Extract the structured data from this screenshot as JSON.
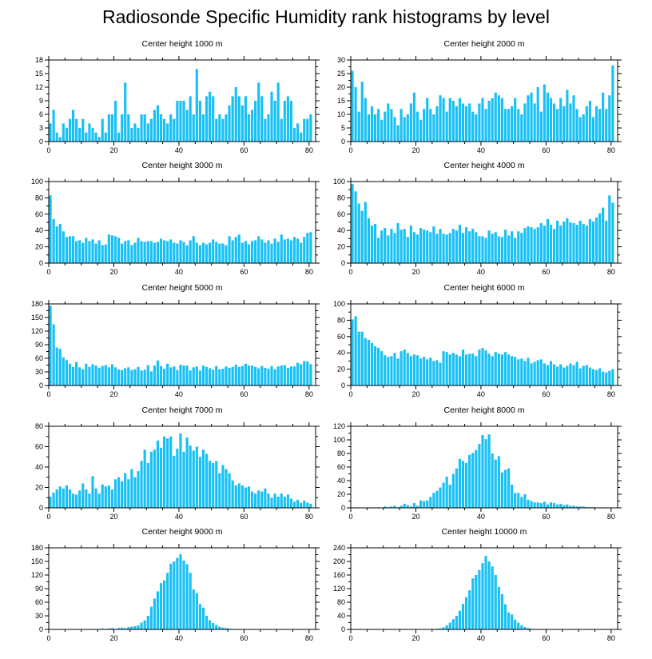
{
  "title": "Radiosonde Specific Humidity rank histograms by level",
  "chart_data": [
    {
      "type": "bar",
      "title": "Center height 1000 m",
      "xlim": [
        0,
        82
      ],
      "ylim": [
        0,
        18
      ],
      "xticks": [
        0,
        20,
        40,
        60,
        80
      ],
      "yticks": [
        0,
        3,
        6,
        9,
        12,
        15,
        18
      ],
      "values": [
        4,
        7,
        2,
        1,
        4,
        3,
        5,
        7,
        5,
        3,
        5,
        2,
        4,
        3,
        2,
        1,
        5,
        2,
        6,
        6,
        9,
        2,
        6,
        13,
        6,
        3,
        4,
        3,
        6,
        6,
        4,
        5,
        7,
        8,
        6,
        5,
        4,
        6,
        5,
        9,
        9,
        9,
        7,
        10,
        6,
        16,
        9,
        6,
        10,
        11,
        10,
        5,
        6,
        5,
        6,
        8,
        10,
        12,
        10,
        8,
        10,
        6,
        7,
        9,
        13,
        10,
        5,
        6,
        11,
        9,
        13,
        5,
        9,
        10,
        9,
        3,
        4,
        2,
        5,
        5,
        6
      ]
    },
    {
      "type": "bar",
      "title": "Center height 2000 m",
      "xlim": [
        0,
        82
      ],
      "ylim": [
        0,
        30
      ],
      "xticks": [
        0,
        20,
        40,
        60,
        80
      ],
      "yticks": [
        0,
        5,
        10,
        15,
        20,
        25,
        30
      ],
      "values": [
        26,
        20,
        11,
        22,
        16,
        10,
        13,
        10,
        12,
        8,
        11,
        14,
        12,
        9,
        6,
        12,
        9,
        10,
        14,
        18,
        11,
        8,
        12,
        16,
        12,
        10,
        13,
        17,
        16,
        11,
        16,
        15,
        13,
        16,
        14,
        13,
        14,
        11,
        10,
        14,
        16,
        12,
        15,
        16,
        18,
        17,
        16,
        12,
        12,
        13,
        16,
        12,
        10,
        14,
        17,
        18,
        14,
        20,
        11,
        21,
        18,
        16,
        14,
        12,
        16,
        13,
        19,
        14,
        17,
        12,
        9,
        10,
        13,
        15,
        9,
        13,
        12,
        18,
        12,
        17,
        28
      ]
    },
    {
      "type": "bar",
      "title": "Center height 3000 m",
      "xlim": [
        0,
        82
      ],
      "ylim": [
        0,
        100
      ],
      "xticks": [
        0,
        20,
        40,
        60,
        80
      ],
      "yticks": [
        0,
        20,
        40,
        60,
        80,
        100
      ],
      "values": [
        83,
        54,
        45,
        48,
        39,
        32,
        33,
        33,
        27,
        28,
        25,
        31,
        27,
        29,
        24,
        28,
        22,
        23,
        35,
        34,
        33,
        31,
        24,
        27,
        28,
        22,
        25,
        31,
        27,
        26,
        27,
        27,
        25,
        26,
        30,
        28,
        27,
        29,
        25,
        24,
        28,
        26,
        22,
        28,
        33,
        25,
        22,
        25,
        23,
        25,
        29,
        26,
        24,
        24,
        22,
        33,
        28,
        32,
        35,
        25,
        27,
        23,
        27,
        28,
        33,
        29,
        25,
        28,
        24,
        30,
        26,
        35,
        29,
        30,
        28,
        32,
        30,
        25,
        32,
        37,
        38
      ]
    },
    {
      "type": "bar",
      "title": "Center height 4000 m",
      "xlim": [
        0,
        82
      ],
      "ylim": [
        0,
        100
      ],
      "xticks": [
        0,
        20,
        40,
        60,
        80
      ],
      "yticks": [
        0,
        20,
        40,
        60,
        80,
        100
      ],
      "values": [
        97,
        88,
        73,
        64,
        75,
        55,
        46,
        48,
        31,
        40,
        43,
        34,
        42,
        37,
        49,
        41,
        42,
        32,
        46,
        38,
        35,
        43,
        41,
        40,
        38,
        45,
        36,
        42,
        36,
        35,
        37,
        42,
        40,
        47,
        37,
        44,
        39,
        42,
        38,
        33,
        33,
        31,
        40,
        36,
        38,
        33,
        32,
        41,
        34,
        39,
        31,
        39,
        37,
        43,
        45,
        44,
        42,
        44,
        49,
        46,
        54,
        47,
        42,
        52,
        46,
        51,
        55,
        50,
        49,
        47,
        52,
        48,
        46,
        54,
        51,
        56,
        61,
        68,
        52,
        83,
        74
      ]
    },
    {
      "type": "bar",
      "title": "Center height 5000 m",
      "xlim": [
        0,
        82
      ],
      "ylim": [
        0,
        180
      ],
      "xticks": [
        0,
        20,
        40,
        60,
        80
      ],
      "yticks": [
        0,
        30,
        60,
        90,
        120,
        150,
        180
      ],
      "values": [
        176,
        135,
        84,
        81,
        62,
        56,
        48,
        41,
        52,
        40,
        36,
        48,
        41,
        47,
        44,
        39,
        43,
        45,
        40,
        47,
        40,
        35,
        34,
        38,
        40,
        34,
        36,
        41,
        33,
        35,
        45,
        31,
        44,
        55,
        43,
        37,
        48,
        40,
        42,
        34,
        46,
        44,
        44,
        33,
        40,
        42,
        33,
        44,
        41,
        38,
        35,
        43,
        36,
        37,
        42,
        39,
        41,
        46,
        41,
        43,
        48,
        44,
        44,
        41,
        38,
        43,
        39,
        37,
        43,
        36,
        42,
        44,
        45,
        39,
        42,
        42,
        50,
        47,
        54,
        53,
        47
      ]
    },
    {
      "type": "bar",
      "title": "Center height 6000 m",
      "xlim": [
        0,
        82
      ],
      "ylim": [
        0,
        100
      ],
      "xticks": [
        0,
        20,
        40,
        60,
        80
      ],
      "yticks": [
        0,
        20,
        40,
        60,
        80,
        100
      ],
      "values": [
        81,
        85,
        66,
        66,
        58,
        56,
        52,
        48,
        46,
        42,
        37,
        35,
        36,
        40,
        33,
        42,
        44,
        40,
        36,
        38,
        37,
        33,
        35,
        32,
        34,
        30,
        31,
        28,
        42,
        41,
        38,
        40,
        38,
        36,
        44,
        38,
        39,
        39,
        36,
        44,
        46,
        43,
        39,
        36,
        41,
        39,
        38,
        41,
        38,
        36,
        35,
        32,
        33,
        30,
        34,
        27,
        29,
        31,
        32,
        27,
        25,
        30,
        26,
        23,
        26,
        22,
        24,
        27,
        25,
        29,
        21,
        24,
        25,
        22,
        20,
        19,
        21,
        17,
        16,
        18,
        20
      ]
    },
    {
      "type": "bar",
      "title": "Center height 7000 m",
      "xlim": [
        0,
        82
      ],
      "ylim": [
        0,
        80
      ],
      "xticks": [
        0,
        20,
        40,
        60,
        80
      ],
      "yticks": [
        0,
        20,
        40,
        60,
        80
      ],
      "values": [
        11,
        15,
        18,
        21,
        19,
        22,
        18,
        14,
        13,
        17,
        24,
        18,
        14,
        31,
        19,
        14,
        23,
        21,
        22,
        18,
        28,
        30,
        26,
        34,
        28,
        38,
        30,
        36,
        46,
        57,
        44,
        55,
        57,
        66,
        59,
        70,
        68,
        70,
        51,
        58,
        73,
        55,
        69,
        61,
        56,
        60,
        50,
        57,
        53,
        46,
        44,
        46,
        34,
        42,
        38,
        34,
        27,
        22,
        24,
        22,
        20,
        21,
        16,
        14,
        17,
        16,
        19,
        14,
        10,
        14,
        11,
        14,
        11,
        13,
        9,
        6,
        8,
        5,
        7,
        5,
        4
      ]
    },
    {
      "type": "bar",
      "title": "Center height 8000 m",
      "xlim": [
        0,
        82
      ],
      "ylim": [
        0,
        120
      ],
      "xticks": [
        0,
        20,
        40,
        60,
        80
      ],
      "yticks": [
        0,
        20,
        40,
        60,
        80,
        100,
        120
      ],
      "values": [
        0,
        0,
        0,
        0,
        0,
        0,
        0,
        0,
        1,
        0,
        2,
        1,
        2,
        3,
        1,
        3,
        6,
        4,
        2,
        7,
        3,
        11,
        10,
        11,
        16,
        22,
        25,
        30,
        37,
        46,
        34,
        50,
        58,
        72,
        69,
        66,
        78,
        81,
        85,
        94,
        107,
        101,
        108,
        80,
        71,
        76,
        52,
        56,
        58,
        34,
        22,
        22,
        16,
        20,
        12,
        10,
        8,
        8,
        7,
        9,
        5,
        8,
        7,
        5,
        6,
        4,
        5,
        3,
        3,
        2,
        2,
        2,
        1,
        1,
        1,
        0,
        0,
        0,
        0,
        0,
        0
      ]
    },
    {
      "type": "bar",
      "title": "Center height 9000 m",
      "xlim": [
        0,
        82
      ],
      "ylim": [
        0,
        180
      ],
      "xticks": [
        0,
        20,
        40,
        60,
        80
      ],
      "yticks": [
        0,
        30,
        60,
        90,
        120,
        150,
        180
      ],
      "values": [
        0,
        0,
        0,
        0,
        0,
        0,
        0,
        0,
        0,
        0,
        0,
        0,
        0,
        0,
        0,
        0,
        2,
        1,
        2,
        3,
        1,
        3,
        4,
        3,
        5,
        6,
        7,
        9,
        15,
        20,
        30,
        50,
        68,
        84,
        102,
        108,
        125,
        145,
        150,
        158,
        166,
        152,
        144,
        125,
        88,
        80,
        56,
        48,
        30,
        20,
        14,
        10,
        6,
        4,
        3,
        2,
        1,
        1,
        0,
        0,
        0,
        0,
        0,
        0,
        0,
        0,
        0,
        0,
        0,
        0,
        0,
        0,
        0,
        0,
        0,
        0,
        0,
        0,
        0,
        0,
        0
      ]
    },
    {
      "type": "bar",
      "title": "Center height 10000 m",
      "xlim": [
        0,
        82
      ],
      "ylim": [
        0,
        240
      ],
      "xticks": [
        0,
        20,
        40,
        60,
        80
      ],
      "yticks": [
        0,
        40,
        80,
        120,
        160,
        200,
        240
      ],
      "values": [
        0,
        0,
        0,
        0,
        0,
        0,
        0,
        0,
        0,
        0,
        0,
        0,
        0,
        0,
        0,
        0,
        0,
        0,
        0,
        0,
        0,
        0,
        0,
        0,
        0,
        1,
        2,
        3,
        6,
        12,
        20,
        30,
        40,
        55,
        75,
        95,
        115,
        150,
        160,
        175,
        195,
        216,
        200,
        185,
        160,
        125,
        104,
        74,
        50,
        44,
        29,
        20,
        12,
        7,
        4,
        2,
        1,
        0,
        0,
        0,
        0,
        0,
        0,
        0,
        0,
        0,
        0,
        0,
        0,
        0,
        0,
        0,
        0,
        0,
        0,
        0,
        0,
        0,
        0,
        0,
        0
      ]
    }
  ]
}
